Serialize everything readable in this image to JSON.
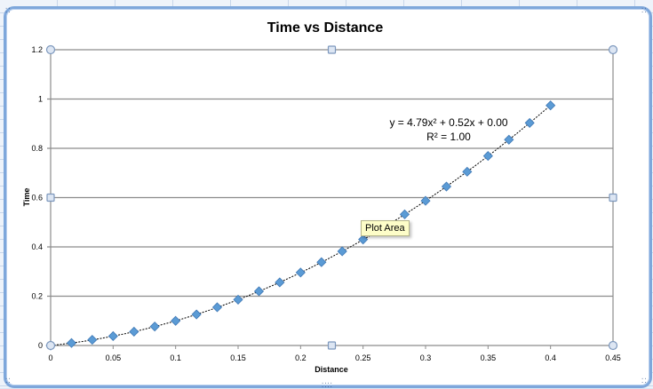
{
  "chart_data": {
    "type": "scatter",
    "title": "Time vs Distance",
    "xlabel": "Distance",
    "ylabel": "Time",
    "xlim": [
      0,
      0.45
    ],
    "ylim": [
      0,
      1.2
    ],
    "x_ticks": [
      "0",
      "0.05",
      "0.1",
      "0.15",
      "0.2",
      "0.25",
      "0.3",
      "0.35",
      "0.4",
      "0.45"
    ],
    "y_ticks": [
      "0",
      "0.2",
      "0.4",
      "0.6",
      "0.8",
      "1",
      "1.2"
    ],
    "grid": "horizontal",
    "legend": "none",
    "series": [
      {
        "name": "Time",
        "marker": "diamond",
        "color": "#5b9bd5",
        "x": [
          0,
          0.0167,
          0.0333,
          0.05,
          0.0667,
          0.0833,
          0.1,
          0.1167,
          0.1333,
          0.15,
          0.1667,
          0.1833,
          0.2,
          0.2167,
          0.2333,
          0.25,
          0.2667,
          0.2833,
          0.3,
          0.3167,
          0.3333,
          0.35,
          0.3667,
          0.3833,
          0.4
        ],
        "y": [
          0,
          0.01,
          0.023,
          0.038,
          0.056,
          0.077,
          0.1,
          0.126,
          0.155,
          0.186,
          0.22,
          0.256,
          0.296,
          0.338,
          0.382,
          0.43,
          0.479,
          0.532,
          0.587,
          0.645,
          0.705,
          0.769,
          0.835,
          0.903,
          0.974
        ]
      }
    ],
    "trendline": {
      "type": "polynomial",
      "order": 2,
      "equation": "y = 4.79x² + 0.52x + 0.00",
      "r_squared": "R² = 1.00",
      "coefficients": [
        4.79,
        0.52,
        0.0
      ]
    }
  },
  "tooltip": {
    "text": "Plot Area"
  }
}
